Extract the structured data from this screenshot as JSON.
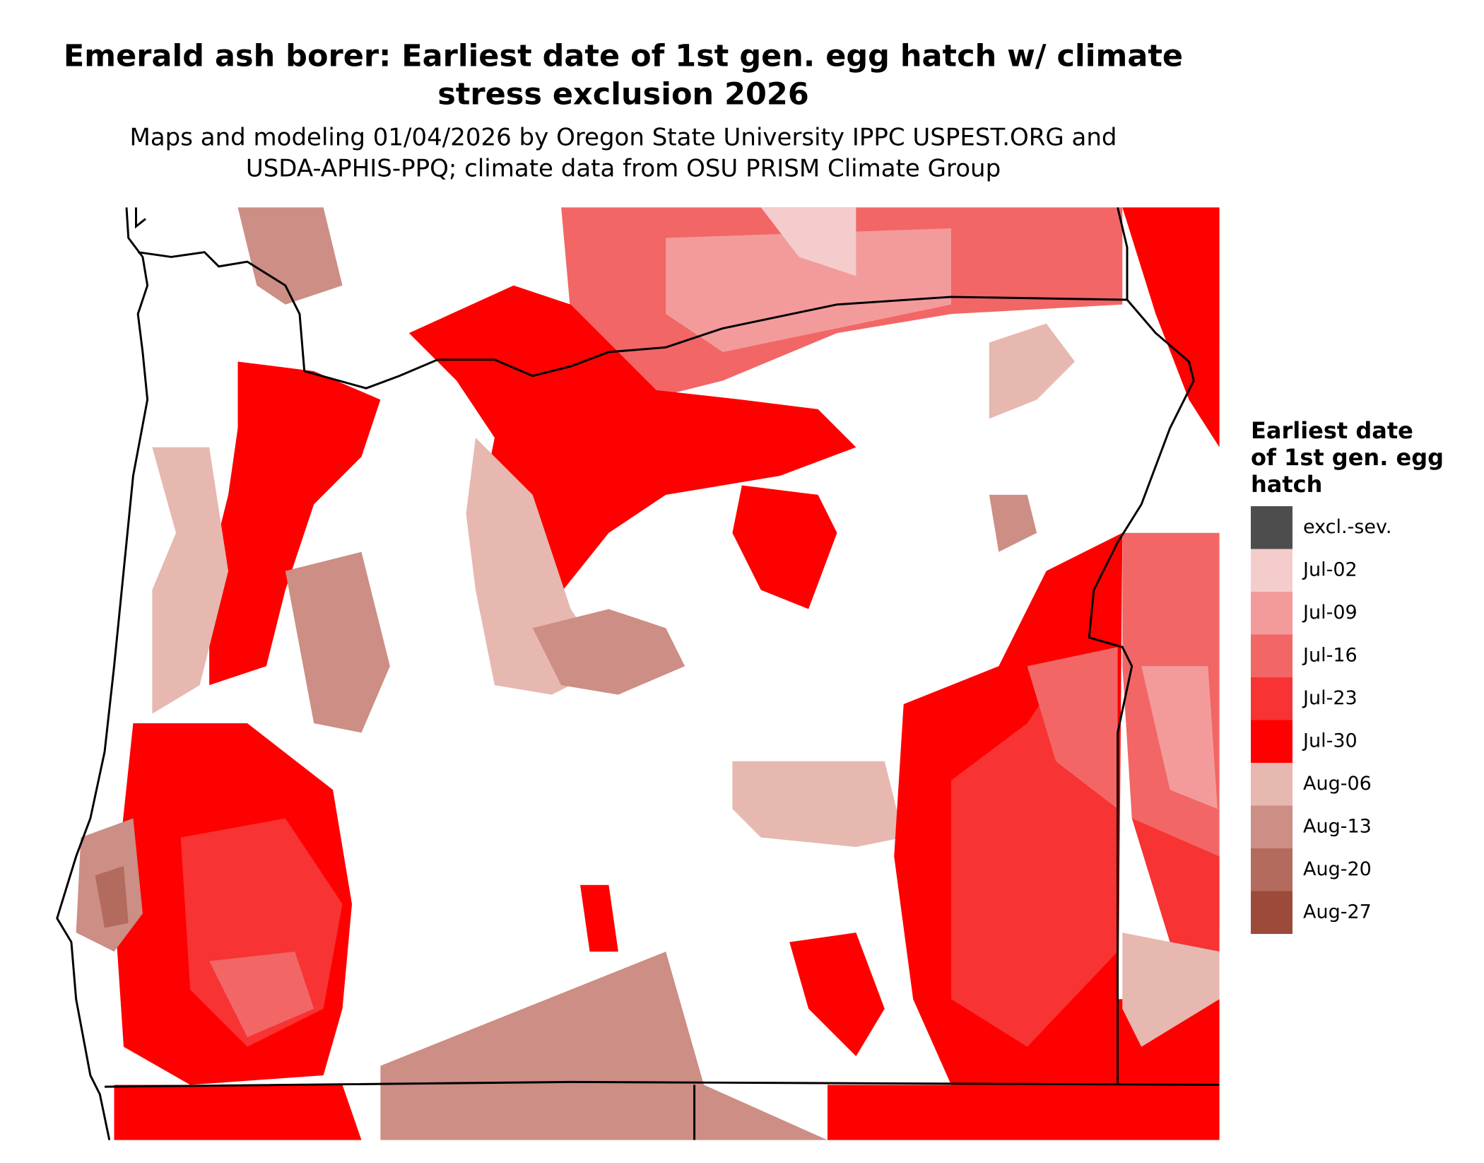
{
  "title_line1": "Emerald ash borer: Earliest date of 1st gen. egg hatch w/ climate",
  "title_line2": "stress exclusion 2026",
  "subtitle_line1": "Maps and modeling 01/04/2026 by Oregon State University IPPC USPEST.ORG and",
  "subtitle_line2": "USDA-APHIS-PPQ; climate data from OSU PRISM Climate Group",
  "legend": {
    "title_lines": [
      "Earliest date",
      "of 1st gen. egg",
      "hatch"
    ],
    "items": [
      {
        "label": "excl.-sev.",
        "color": "#4d4d4d"
      },
      {
        "label": "Jul-02",
        "color": "#f4cccc"
      },
      {
        "label": "Jul-09",
        "color": "#f39b9b"
      },
      {
        "label": "Jul-16",
        "color": "#f26666"
      },
      {
        "label": "Jul-23",
        "color": "#f73333"
      },
      {
        "label": "Jul-30",
        "color": "#ff0000"
      },
      {
        "label": "Aug-06",
        "color": "#e6b8b0"
      },
      {
        "label": "Aug-13",
        "color": "#cc8e85"
      },
      {
        "label": "Aug-20",
        "color": "#b36b5e"
      },
      {
        "label": "Aug-27",
        "color": "#9c4a3a"
      }
    ]
  }
}
